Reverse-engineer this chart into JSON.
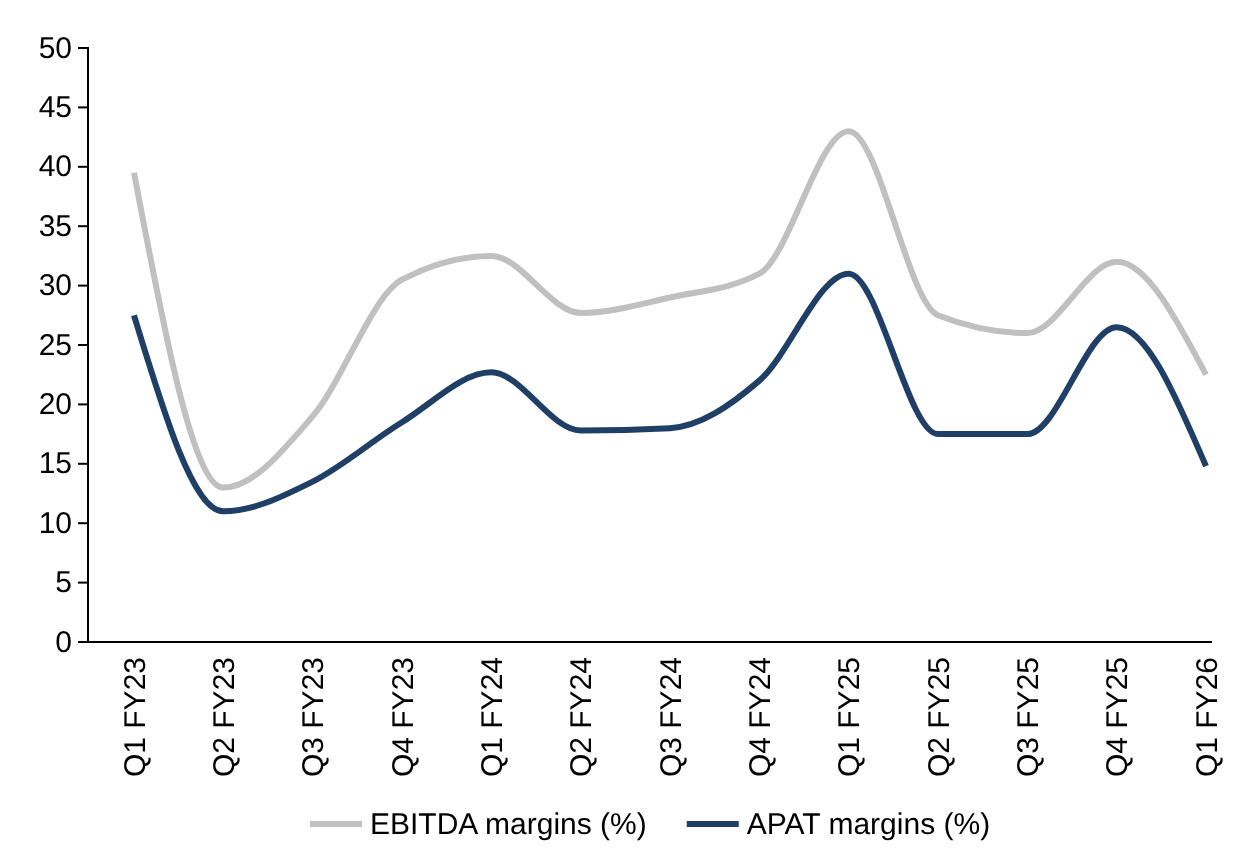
{
  "chart_data": {
    "type": "line",
    "categories": [
      "Q1 FY23",
      "Q2 FY23",
      "Q3 FY23",
      "Q4 FY23",
      "Q1 FY24",
      "Q2 FY24",
      "Q3 FY24",
      "Q4 FY24",
      "Q1 FY25",
      "Q2 FY25",
      "Q3 FY25",
      "Q4 FY25",
      "Q1 FY26"
    ],
    "series": [
      {
        "name": "EBITDA margins (%)",
        "color": "#c0c0c0",
        "values": [
          39.5,
          13,
          19,
          30.5,
          32.5,
          27.7,
          29,
          31,
          43,
          27.5,
          26,
          32,
          22.5
        ]
      },
      {
        "name": "APAT margins (%)",
        "color": "#1f3f66",
        "values": [
          27.5,
          11,
          13.5,
          18.5,
          22.7,
          17.8,
          18,
          22,
          31,
          17.5,
          17.5,
          26.5,
          14.8
        ]
      }
    ],
    "ylim": [
      0,
      50
    ],
    "yticks": [
      0,
      5,
      10,
      15,
      20,
      25,
      30,
      35,
      40,
      45,
      50
    ],
    "grid": false,
    "legend": "bottom",
    "marker": "none",
    "line_style": "solid"
  }
}
